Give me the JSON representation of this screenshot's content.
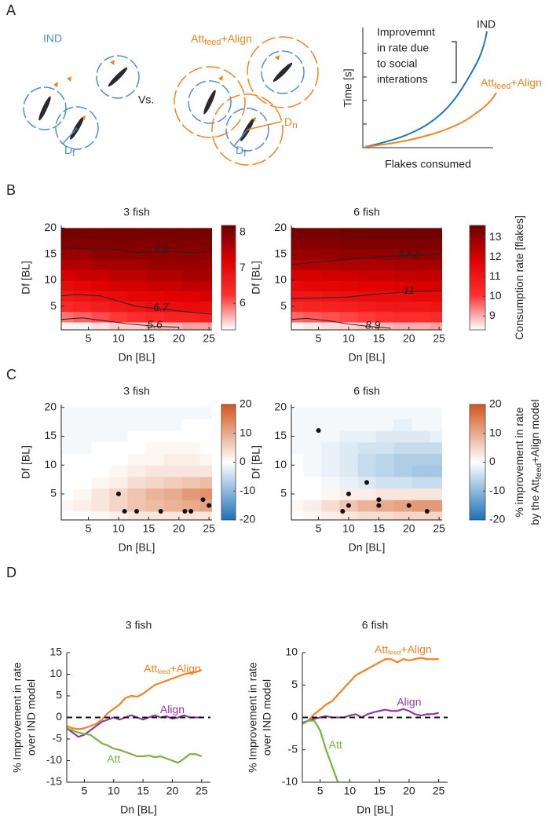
{
  "panel_labels": [
    "A",
    "B",
    "C",
    "D"
  ],
  "panel_a": {
    "ind_label": "IND",
    "group_label": [
      "Att",
      "feed",
      "+Align"
    ],
    "vs": "Vs.",
    "df_left": [
      "D",
      "f"
    ],
    "df_right": [
      "D",
      "f"
    ],
    "dn": [
      "D",
      "n"
    ],
    "schematic": {
      "ylabel": "Time [s]",
      "xlabel": "Flakes consumed",
      "note": [
        "Improvemnt",
        "in rate due",
        "to social",
        "interations"
      ],
      "ind": "IND",
      "group": [
        "Att",
        "feed",
        "+Align"
      ]
    }
  },
  "chart_data": [
    {
      "type": "heatmap",
      "title": "3 fish",
      "xlabel": "Dn [BL]",
      "ylabel": "Df [BL]",
      "x": [
        1,
        4,
        7,
        10,
        13,
        16,
        19,
        22,
        25
      ],
      "y": [
        1,
        3,
        5,
        7,
        9,
        11,
        13,
        15,
        17,
        19
      ],
      "values": [
        [
          5.3,
          5.3,
          5.4,
          5.5,
          5.5,
          5.6,
          5.6,
          5.7,
          5.7
        ],
        [
          5.9,
          6.0,
          6.1,
          6.2,
          6.3,
          6.4,
          6.5,
          6.5,
          6.6
        ],
        [
          6.4,
          6.5,
          6.6,
          6.7,
          6.8,
          6.9,
          6.9,
          7.0,
          7.0
        ],
        [
          6.7,
          6.8,
          6.9,
          7.0,
          7.1,
          7.1,
          7.2,
          7.2,
          7.3
        ],
        [
          7.0,
          7.1,
          7.2,
          7.3,
          7.3,
          7.4,
          7.4,
          7.5,
          7.5
        ],
        [
          7.3,
          7.4,
          7.4,
          7.5,
          7.5,
          7.6,
          7.6,
          7.7,
          7.7
        ],
        [
          7.6,
          7.6,
          7.7,
          7.7,
          7.7,
          7.8,
          7.8,
          7.8,
          7.8
        ],
        [
          7.8,
          7.8,
          7.9,
          7.9,
          7.9,
          7.9,
          7.9,
          7.9,
          7.9
        ],
        [
          8.0,
          8.0,
          8.0,
          8.0,
          8.0,
          8.0,
          8.0,
          8.0,
          8.0
        ],
        [
          8.1,
          8.1,
          8.1,
          8.1,
          8.1,
          8.1,
          8.1,
          8.1,
          8.1
        ]
      ],
      "xlim": [
        0.5,
        25.5
      ],
      "ylim": [
        0.5,
        20.5
      ],
      "xticks": [
        5,
        10,
        15,
        20,
        25
      ],
      "yticks": [
        5,
        10,
        15,
        20
      ],
      "zlim": [
        5.25,
        8.2
      ],
      "zticks": [
        6,
        7,
        8
      ],
      "colors": [
        "#ffffff",
        "#ff3030",
        "#e00000",
        "#6a0000"
      ],
      "contours": [
        {
          "level": 7.9,
          "x": [
            0.5,
            5,
            10,
            13,
            17,
            22,
            25.5
          ],
          "y": [
            16.3,
            16.0,
            15.9,
            15.3,
            15.6,
            15.3,
            15.5
          ]
        },
        {
          "level": 6.7,
          "x": [
            0.5,
            3,
            7,
            10,
            13,
            17,
            21,
            25.5
          ],
          "y": [
            7,
            7.3,
            7,
            6,
            5,
            4.5,
            4,
            3.5
          ]
        },
        {
          "level": 5.6,
          "x": [
            0.5,
            4,
            8,
            12,
            16,
            20
          ],
          "y": [
            2.5,
            2.8,
            2.2,
            1.6,
            1.2,
            1.0
          ]
        }
      ]
    },
    {
      "type": "heatmap",
      "title": "6 fish",
      "xlabel": "Dn [BL]",
      "ylabel": "Df [BL]",
      "x": [
        1,
        4,
        7,
        10,
        13,
        16,
        19,
        22,
        25
      ],
      "y": [
        1,
        3,
        5,
        7,
        9,
        11,
        13,
        15,
        17,
        19
      ],
      "values": [
        [
          8.4,
          8.5,
          8.6,
          8.7,
          8.8,
          8.9,
          9.0,
          9.0,
          9.1
        ],
        [
          9.6,
          9.7,
          9.8,
          9.9,
          10.0,
          10.1,
          10.2,
          10.2,
          10.3
        ],
        [
          10.4,
          10.5,
          10.6,
          10.7,
          10.8,
          10.9,
          11.0,
          11.0,
          11.1
        ],
        [
          11.0,
          11.0,
          11.1,
          11.2,
          11.3,
          11.4,
          11.4,
          11.5,
          11.5
        ],
        [
          11.5,
          11.6,
          11.6,
          11.7,
          11.8,
          11.8,
          11.9,
          11.9,
          12.0
        ],
        [
          12.0,
          12.0,
          12.1,
          12.1,
          12.2,
          12.2,
          12.3,
          12.3,
          12.3
        ],
        [
          12.5,
          12.5,
          12.5,
          12.6,
          12.6,
          12.6,
          12.7,
          12.7,
          12.7
        ],
        [
          12.9,
          12.9,
          12.9,
          13.0,
          13.0,
          13.0,
          13.0,
          13.1,
          13.1
        ],
        [
          13.2,
          13.2,
          13.2,
          13.3,
          13.3,
          13.3,
          13.3,
          13.3,
          13.3
        ],
        [
          13.4,
          13.4,
          13.4,
          13.5,
          13.5,
          13.5,
          13.5,
          13.5,
          13.5
        ]
      ],
      "xlim": [
        0.5,
        25.5
      ],
      "ylim": [
        0.5,
        20.5
      ],
      "xticks": [
        5,
        10,
        15,
        20,
        25
      ],
      "yticks": [
        5,
        10,
        15,
        20
      ],
      "zlim": [
        8.3,
        13.6
      ],
      "zticks": [
        9,
        10,
        11,
        12,
        13
      ],
      "colors": [
        "#ffffff",
        "#ff3030",
        "#e00000",
        "#6a0000"
      ],
      "colorbar_label": [
        [
          "Consumption rate [flakes]"
        ]
      ],
      "contours": [
        {
          "level": 13.2,
          "x": [
            0.5,
            5,
            10,
            15,
            20,
            25.5
          ],
          "y": [
            13,
            13.5,
            14,
            14.5,
            14.8,
            15
          ]
        },
        {
          "level": 11,
          "x": [
            0.5,
            5,
            10,
            15,
            20,
            25.5
          ],
          "y": [
            6.5,
            6.6,
            6.8,
            7.4,
            7.8,
            8
          ]
        },
        {
          "level": 8.9,
          "x": [
            0.5,
            3,
            7,
            10,
            14,
            17
          ],
          "y": [
            2.5,
            2.7,
            2.2,
            1.6,
            1.1,
            0.8
          ]
        }
      ]
    },
    {
      "type": "heatmap",
      "title": "3 fish",
      "xlabel": "Dn [BL]",
      "ylabel": "Df [BL]",
      "x": [
        1,
        4,
        7,
        10,
        13,
        16,
        19,
        22,
        25
      ],
      "y": [
        1,
        3,
        5,
        7,
        9,
        11,
        13,
        15,
        17,
        19
      ],
      "values": [
        [
          0,
          0,
          1,
          2,
          3,
          3,
          3,
          3,
          3
        ],
        [
          1,
          2,
          3,
          5,
          7,
          8,
          9,
          10,
          11
        ],
        [
          0,
          1,
          3,
          5,
          7,
          9,
          10,
          12,
          13
        ],
        [
          0,
          0,
          1,
          2,
          4,
          5,
          6,
          7,
          8
        ],
        [
          0,
          0,
          0,
          1,
          2,
          3,
          3,
          3,
          3
        ],
        [
          0,
          0,
          0,
          0,
          1,
          1,
          2,
          2,
          1
        ],
        [
          -1,
          -1,
          0,
          0,
          0,
          1,
          1,
          1,
          0
        ],
        [
          -1,
          -1,
          -1,
          -1,
          0,
          0,
          0,
          0,
          0
        ],
        [
          -1,
          -1,
          -1,
          -1,
          -1,
          -1,
          -1,
          0,
          0
        ],
        [
          -1,
          -1,
          -1,
          -1,
          -1,
          -1,
          -1,
          -1,
          -1
        ]
      ],
      "xlim": [
        0.5,
        25.5
      ],
      "ylim": [
        0.5,
        20.5
      ],
      "xticks": [
        5,
        10,
        15,
        20,
        25
      ],
      "yticks": [
        5,
        10,
        15,
        20
      ],
      "zlim": [
        -20,
        20
      ],
      "zticks": [
        -20,
        -10,
        0,
        10,
        20
      ],
      "colors": [
        "#1b72b8",
        "#ffffff",
        "#d2571c"
      ],
      "points": {
        "x": [
          10,
          11,
          13,
          17,
          21,
          22,
          24,
          25
        ],
        "y": [
          5,
          2,
          2,
          2,
          2,
          2,
          4,
          3
        ]
      }
    },
    {
      "type": "heatmap",
      "title": "6 fish",
      "xlabel": "Dn [BL]",
      "ylabel": "Df [BL]",
      "x": [
        1,
        4,
        7,
        10,
        13,
        16,
        19,
        22,
        25
      ],
      "y": [
        1,
        3,
        5,
        7,
        9,
        11,
        13,
        15,
        17,
        19
      ],
      "values": [
        [
          0,
          1,
          2,
          3,
          4,
          4,
          5,
          5,
          5
        ],
        [
          1,
          2,
          4,
          7,
          9,
          10,
          11,
          12,
          12
        ],
        [
          0,
          0,
          1,
          2,
          2,
          3,
          3,
          3,
          3
        ],
        [
          0,
          0,
          -1,
          -2,
          -3,
          -4,
          -4,
          -5,
          -5
        ],
        [
          0,
          -1,
          -2,
          -3,
          -5,
          -6,
          -7,
          -8,
          -8
        ],
        [
          0,
          -1,
          -2,
          -3,
          -5,
          -6,
          -7,
          -7,
          -7
        ],
        [
          -1,
          -1,
          -2,
          -3,
          -4,
          -4,
          -5,
          -5,
          -5
        ],
        [
          -1,
          -1,
          -1,
          -2,
          -2,
          -3,
          -3,
          -3,
          -2
        ],
        [
          -1,
          -1,
          -1,
          -1,
          -1,
          -1,
          -2,
          -1,
          -1
        ],
        [
          -1,
          -1,
          -1,
          -1,
          -1,
          -1,
          -1,
          -1,
          -1
        ]
      ],
      "xlim": [
        0.5,
        25.5
      ],
      "ylim": [
        0.5,
        20.5
      ],
      "xticks": [
        5,
        10,
        15,
        20,
        25
      ],
      "yticks": [
        5,
        10,
        15,
        20
      ],
      "zlim": [
        -20,
        20
      ],
      "zticks": [
        -20,
        -10,
        0,
        10,
        20
      ],
      "colors": [
        "#1b72b8",
        "#ffffff",
        "#d2571c"
      ],
      "colorbar_label": [
        [
          "% improvement in rate"
        ],
        [
          "by the Att",
          "feed",
          "+Align model"
        ]
      ],
      "points": {
        "x": [
          5,
          9,
          10,
          10,
          13,
          15,
          15,
          20,
          23
        ],
        "y": [
          16,
          2,
          5,
          3,
          7,
          4,
          3,
          3,
          2
        ]
      }
    },
    {
      "type": "line",
      "title": "3 fish",
      "xlabel": "Dn [BL]",
      "ylabel": [
        "% Improvement in rate",
        "over IND model"
      ],
      "x": [
        2,
        3,
        4,
        5,
        6,
        7,
        8,
        9,
        10,
        11,
        12,
        13,
        14,
        15,
        16,
        17,
        18,
        19,
        20,
        21,
        22,
        23,
        24,
        25
      ],
      "xlim": [
        2,
        26.5
      ],
      "ylim": [
        -15,
        15
      ],
      "xticks": [
        5,
        10,
        15,
        20,
        25
      ],
      "yticks": [
        -15,
        -10,
        -5,
        0,
        5,
        10,
        15
      ],
      "zero_line": true,
      "series": [
        {
          "name": [
            "Att",
            "feed",
            "+Align"
          ],
          "color": "#f58220",
          "values": [
            -2,
            -2.5,
            -2.7,
            -2.5,
            -2,
            -1.5,
            -0.5,
            1,
            2,
            3,
            4.5,
            5,
            4.8,
            5.5,
            6.5,
            7.5,
            8,
            8.5,
            9,
            9.5,
            10,
            10.3,
            10.5,
            11
          ]
        },
        {
          "name": [
            "Align"
          ],
          "color": "#8e3c9e",
          "values": [
            -2.5,
            -3.5,
            -4.5,
            -4,
            -3,
            -2,
            -1,
            -0.5,
            0,
            -0.5,
            0,
            0.5,
            0,
            -0.5,
            0,
            0.5,
            0,
            0.3,
            -0.3,
            0,
            0.5,
            0,
            0,
            0
          ]
        },
        {
          "name": [
            "Att"
          ],
          "color": "#78b33e",
          "values": [
            -2.5,
            -3,
            -3.5,
            -3.8,
            -4,
            -5,
            -6,
            -6.5,
            -7.2,
            -7.5,
            -8,
            -8.5,
            -9,
            -9,
            -8.8,
            -9.2,
            -9,
            -9.5,
            -10,
            -10.5,
            -9.5,
            -8.5,
            -8.5,
            -9
          ]
        }
      ]
    },
    {
      "type": "line",
      "title": "6 fish",
      "xlabel": "Dn [BL]",
      "ylabel": [
        "% Improvement in rate",
        "over IND model"
      ],
      "x": [
        2,
        3,
        4,
        5,
        6,
        7,
        8,
        9,
        10,
        11,
        12,
        13,
        14,
        15,
        16,
        17,
        18,
        19,
        20,
        21,
        22,
        23,
        24,
        25
      ],
      "xlim": [
        2,
        26.5
      ],
      "ylim": [
        -10,
        10
      ],
      "xticks": [
        5,
        10,
        15,
        20,
        25
      ],
      "yticks": [
        -10,
        -5,
        0,
        5,
        10
      ],
      "zero_line": true,
      "series": [
        {
          "name": [
            "Att",
            "feed",
            "+Align"
          ],
          "color": "#f58220",
          "values": [
            -1,
            -0.5,
            0.5,
            1.2,
            2,
            2.5,
            3.5,
            4.5,
            5.5,
            6.5,
            7,
            7.5,
            8,
            8.5,
            9,
            9,
            8.5,
            9,
            8.8,
            9,
            9.2,
            9,
            9,
            9
          ]
        },
        {
          "name": [
            "Align"
          ],
          "color": "#8e3c9e",
          "values": [
            -0.8,
            -0.5,
            -0.2,
            0,
            0.2,
            0,
            0,
            0,
            0.3,
            0.5,
            0,
            0.5,
            0.8,
            1,
            1.2,
            1,
            1,
            1.3,
            1,
            0.5,
            0.3,
            0.5,
            0.5,
            0.7
          ]
        },
        {
          "name": [
            "Att"
          ],
          "color": "#78b33e",
          "values": [
            -1,
            -0.5,
            -0.5,
            -2,
            -5,
            -7.5,
            -10,
            null,
            null,
            null,
            null,
            null,
            null,
            null,
            null,
            null,
            null,
            null,
            null,
            null,
            null,
            null,
            null,
            null
          ]
        }
      ]
    }
  ]
}
